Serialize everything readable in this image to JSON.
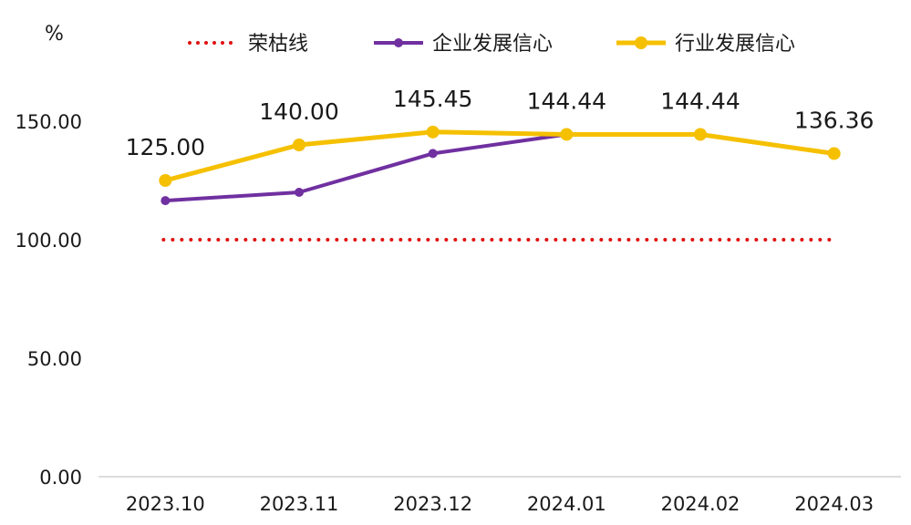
{
  "chart_data": {
    "type": "line",
    "unit_label": "%",
    "categories": [
      "2023.10",
      "2023.11",
      "2023.12",
      "2024.01",
      "2024.02",
      "2024.03"
    ],
    "ylim": [
      0,
      160
    ],
    "yticks": [
      0,
      50,
      100,
      150
    ],
    "ytick_labels": [
      "0.00",
      "50.00",
      "100.00",
      "150.00"
    ],
    "legend_position": "top",
    "series": [
      {
        "name": "荣枯线",
        "values": [
          100,
          100,
          100,
          100,
          100,
          100
        ],
        "color": "#e01010",
        "style": "dotted"
      },
      {
        "name": "企业发展信心",
        "values": [
          116.5,
          120.0,
          136.4,
          144.44,
          144.44,
          136.36
        ],
        "color": "#7030a0",
        "style": "solid-marker"
      },
      {
        "name": "行业发展信心",
        "values": [
          125.0,
          140.0,
          145.45,
          144.44,
          144.44,
          136.36
        ],
        "color": "#f5c000",
        "style": "solid-marker"
      }
    ],
    "data_labels": [
      "125.00",
      "140.00",
      "145.45",
      "144.44",
      "144.44",
      "136.36"
    ]
  }
}
